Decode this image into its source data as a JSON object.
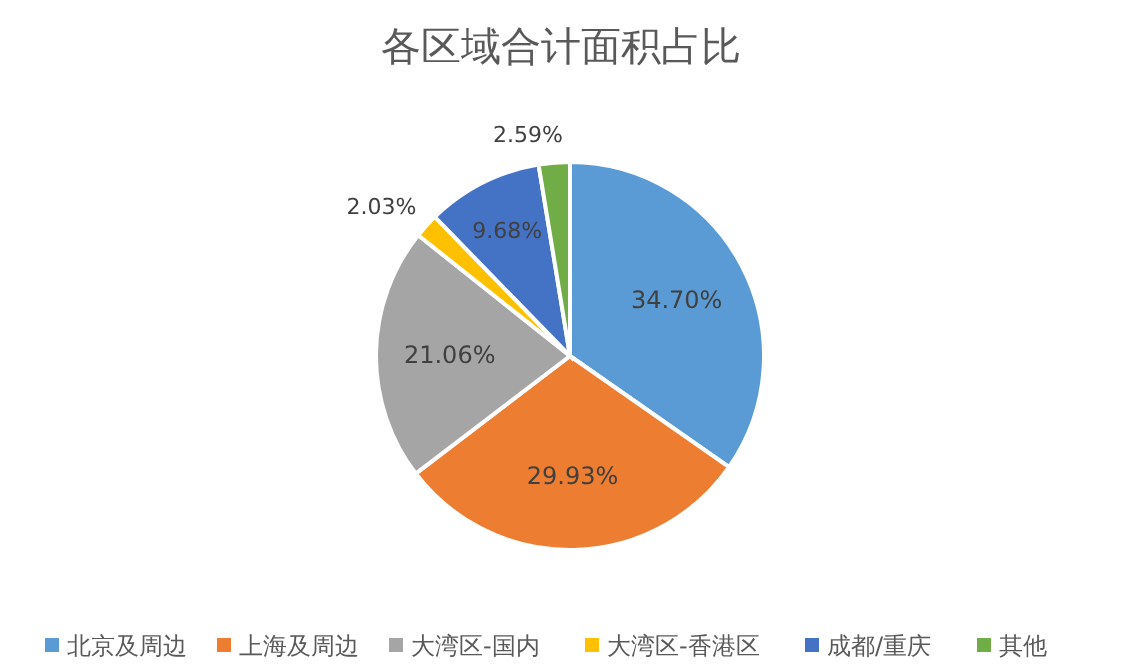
{
  "chart_data": {
    "type": "pie",
    "title": "各区域合计面积占比",
    "categories": [
      "北京及周边",
      "上海及周边",
      "大湾区-国内",
      "大湾区-香港区",
      "成都/重庆",
      "其他"
    ],
    "values": [
      34.7,
      29.93,
      21.06,
      2.03,
      9.68,
      2.59
    ],
    "value_labels": [
      "34.70%",
      "29.93%",
      "21.06%",
      "2.03%",
      "9.68%",
      "2.59%"
    ],
    "colors": [
      "#5b9bd5",
      "#ed7d31",
      "#a5a5a5",
      "#ffc000",
      "#4472c4",
      "#70ad47"
    ],
    "legend": "bottom"
  }
}
